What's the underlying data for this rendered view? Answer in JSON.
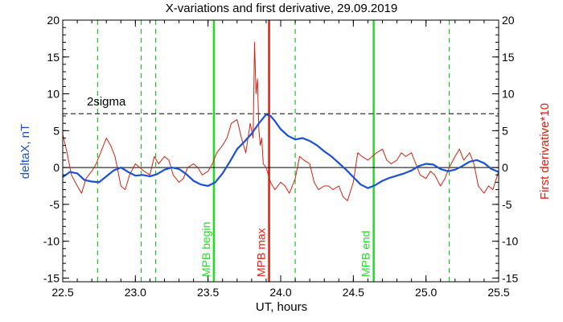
{
  "chart_data": {
    "type": "line",
    "title": "X-variations and first derivative, 29.09.2019",
    "xlabel": "UT, hours",
    "ylabel_left": "deltaX, nT",
    "ylabel_right": "First derivative*10",
    "xlim": [
      22.5,
      25.5
    ],
    "ylim": [
      -15.5,
      20
    ],
    "x_ticks": [
      22.5,
      23.0,
      23.5,
      24.0,
      24.5,
      25.0,
      25.5
    ],
    "x_tick_labels": [
      "22.5",
      "23.0",
      "23.5",
      "24.0",
      "24.5",
      "25.0",
      "25.5"
    ],
    "y_ticks": [
      20,
      15,
      10,
      5,
      0,
      -5,
      -10,
      -15
    ],
    "y_tick_labels": [
      "20",
      "15",
      "10",
      "5",
      "0",
      "-5",
      "-10",
      "-15"
    ],
    "grid": false,
    "series": [
      {
        "color": "#1a4fd8",
        "x": [
          22.5,
          22.55,
          22.6,
          22.65,
          22.7,
          22.75,
          22.8,
          22.85,
          22.9,
          22.95,
          23.0,
          23.05,
          23.1,
          23.15,
          23.2,
          23.25,
          23.3,
          23.35,
          23.4,
          23.45,
          23.5,
          23.55,
          23.6,
          23.65,
          23.7,
          23.75,
          23.8,
          23.85,
          23.9,
          23.93,
          23.96,
          24.0,
          24.05,
          24.1,
          24.15,
          24.2,
          24.25,
          24.3,
          24.35,
          24.4,
          24.45,
          24.5,
          24.55,
          24.6,
          24.65,
          24.7,
          24.75,
          24.8,
          24.85,
          24.9,
          24.95,
          25.0,
          25.05,
          25.1,
          25.15,
          25.2,
          25.25,
          25.3,
          25.35,
          25.4,
          25.45,
          25.5
        ],
        "values": [
          -1.3,
          -0.6,
          -0.8,
          -1.7,
          -1.9,
          -2.0,
          -1.2,
          -0.4,
          0.0,
          -0.6,
          -1.1,
          -1.0,
          -1.2,
          -0.9,
          -0.3,
          0.0,
          -0.2,
          -0.9,
          -1.8,
          -2.3,
          -2.5,
          -2.0,
          -0.8,
          0.8,
          2.5,
          3.5,
          4.6,
          6.0,
          7.2,
          7.0,
          6.3,
          5.2,
          4.3,
          3.8,
          4.0,
          3.6,
          3.0,
          2.2,
          1.5,
          0.6,
          -0.3,
          -1.3,
          -2.3,
          -2.8,
          -2.4,
          -1.8,
          -1.4,
          -1.1,
          -0.8,
          -0.4,
          0.2,
          0.5,
          0.4,
          -0.2,
          -0.5,
          -0.3,
          0.2,
          0.8,
          1.0,
          0.6,
          -0.2,
          -0.6
        ]
      },
      {
        "color": "#d42010",
        "x": [
          22.5,
          22.53,
          22.56,
          22.6,
          22.63,
          22.66,
          22.7,
          22.73,
          22.76,
          22.8,
          22.83,
          22.86,
          22.9,
          22.93,
          22.96,
          23.0,
          23.03,
          23.06,
          23.1,
          23.13,
          23.16,
          23.2,
          23.23,
          23.26,
          23.3,
          23.33,
          23.36,
          23.4,
          23.43,
          23.46,
          23.5,
          23.53,
          23.56,
          23.6,
          23.63,
          23.66,
          23.7,
          23.73,
          23.76,
          23.79,
          23.81,
          23.82,
          23.83,
          23.84,
          23.85,
          23.86,
          23.87,
          23.88,
          23.9,
          23.93,
          23.96,
          24.0,
          24.03,
          24.06,
          24.1,
          24.13,
          24.16,
          24.2,
          24.23,
          24.26,
          24.3,
          24.33,
          24.36,
          24.4,
          24.43,
          24.46,
          24.5,
          24.53,
          24.56,
          24.6,
          24.63,
          24.66,
          24.7,
          24.73,
          24.76,
          24.8,
          24.83,
          24.86,
          24.9,
          24.93,
          24.96,
          25.0,
          25.03,
          25.06,
          25.1,
          25.13,
          25.16,
          25.2,
          25.23,
          25.26,
          25.3,
          25.33,
          25.36,
          25.4,
          25.43,
          25.46,
          25.5
        ],
        "values": [
          4.5,
          2.0,
          -1.0,
          -2.5,
          -3.5,
          -1.5,
          -0.5,
          0.5,
          2.0,
          4.0,
          3.0,
          1.5,
          -2.5,
          -3.0,
          -1.0,
          0.5,
          0.0,
          -0.5,
          -1.0,
          1.5,
          0.5,
          1.5,
          1.0,
          -1.0,
          -2.0,
          -1.5,
          0.0,
          0.5,
          0.0,
          -1.0,
          -0.5,
          0.5,
          2.0,
          3.0,
          4.0,
          6.0,
          6.5,
          4.0,
          2.0,
          6.0,
          4.0,
          17.0,
          10.0,
          12.0,
          5.0,
          3.0,
          4.0,
          0.5,
          0.0,
          -2.0,
          -3.0,
          -2.0,
          -2.5,
          -3.5,
          -1.5,
          1.5,
          1.0,
          0.5,
          -2.0,
          -3.0,
          -2.5,
          -2.5,
          -3.0,
          -2.5,
          -4.0,
          -4.5,
          -2.0,
          2.0,
          1.5,
          1.0,
          1.5,
          2.0,
          2.5,
          1.0,
          0.5,
          1.0,
          2.0,
          1.5,
          2.0,
          0.5,
          -1.0,
          -1.5,
          -0.5,
          -1.0,
          -2.5,
          -1.5,
          0.0,
          1.5,
          2.5,
          1.0,
          2.0,
          0.5,
          -2.5,
          -3.5,
          -2.5,
          -3.0,
          -0.5
        ]
      }
    ],
    "threshold": {
      "value": 7.3,
      "label": "2sigma"
    },
    "markers": [
      {
        "x": 22.74,
        "style": "dashed",
        "color": "#22c022",
        "label": ""
      },
      {
        "x": 23.04,
        "style": "dashed",
        "color": "#22c022",
        "label": ""
      },
      {
        "x": 23.14,
        "style": "dashed",
        "color": "#22c022",
        "label": ""
      },
      {
        "x": 23.54,
        "style": "solid",
        "color": "#22dd22",
        "label": "MPB begin"
      },
      {
        "x": 23.92,
        "style": "solid",
        "color": "#e81c0c",
        "label": "MPB max"
      },
      {
        "x": 24.1,
        "style": "dashed",
        "color": "#22c022",
        "label": ""
      },
      {
        "x": 24.64,
        "style": "solid",
        "color": "#22dd22",
        "label": "MPB end"
      },
      {
        "x": 25.16,
        "style": "dashed",
        "color": "#22c022",
        "label": ""
      }
    ]
  }
}
